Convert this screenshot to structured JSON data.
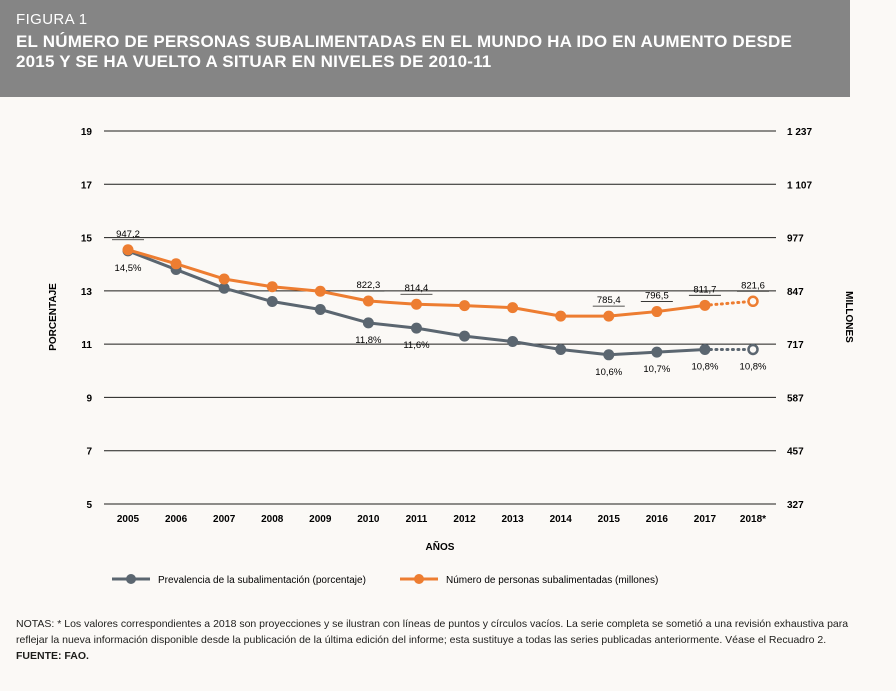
{
  "figure": {
    "label": "FIGURA 1",
    "title": "EL NÚMERO DE PERSONAS SUBALIMENTADAS EN EL MUNDO HA IDO EN AUMENTO DESDE 2015 Y SE HA VUELTO A SITUAR EN NIVELES DE 2010-11"
  },
  "chart_data": {
    "type": "line",
    "xlabel": "AÑOS",
    "ylabel_left": "PORCENTAJE",
    "ylabel_right": "MILLONES",
    "categories": [
      "2005",
      "2006",
      "2007",
      "2008",
      "2009",
      "2010",
      "2011",
      "2012",
      "2013",
      "2014",
      "2015",
      "2016",
      "2017",
      "2018*"
    ],
    "y_left": {
      "ticks": [
        "19",
        "17",
        "15",
        "13",
        "11",
        "9",
        "7",
        "5"
      ],
      "range": [
        5,
        19
      ]
    },
    "y_right": {
      "ticks": [
        "1 237",
        "1 107",
        "977",
        "847",
        "717",
        "587",
        "457",
        "327"
      ],
      "range": [
        327,
        1237
      ]
    },
    "grid": true,
    "series": [
      {
        "name": "Prevalencia de la subalimentación (porcentaje)",
        "color": "#5b6670",
        "values": [
          14.5,
          13.8,
          13.1,
          12.6,
          12.3,
          11.8,
          11.6,
          11.3,
          11.1,
          10.8,
          10.6,
          10.7,
          10.8,
          10.8
        ],
        "projected_from_index": 12,
        "labels": [
          {
            "index": 0,
            "text": "14,5%"
          },
          {
            "index": 5,
            "text": "11,8%"
          },
          {
            "index": 6,
            "text": "11,6%"
          },
          {
            "index": 10,
            "text": "10,6%"
          },
          {
            "index": 11,
            "text": "10,7%"
          },
          {
            "index": 12,
            "text": "10,8%"
          },
          {
            "index": 13,
            "text": "10,8%"
          }
        ]
      },
      {
        "name": "Número de personas subalimentadas (millones)",
        "color": "#ed7d31",
        "values": [
          947.2,
          913,
          876,
          857,
          846,
          822.3,
          814.4,
          811,
          806,
          785.4,
          785.4,
          796.5,
          811.7,
          821.6
        ],
        "projected_from_index": 12,
        "labels": [
          {
            "index": 0,
            "text": "947,2"
          },
          {
            "index": 5,
            "text": "822,3"
          },
          {
            "index": 6,
            "text": "814,4"
          },
          {
            "index": 10,
            "text": "785,4"
          },
          {
            "index": 11,
            "text": "796,5"
          },
          {
            "index": 12,
            "text": "811,7"
          },
          {
            "index": 13,
            "text": "821,6"
          }
        ]
      }
    ]
  },
  "notes": {
    "text": "NOTAS: * Los valores correspondientes a 2018 son proyecciones y se ilustran con líneas de puntos y círculos vacíos. La serie completa se sometió a una revisión exhaustiva para reflejar la nueva información disponible desde la publicación de la última edición del informe; esta sustituye a todas las series publicadas anteriormente. Véase el Recuadro 2.",
    "source": "FUENTE: FAO."
  }
}
